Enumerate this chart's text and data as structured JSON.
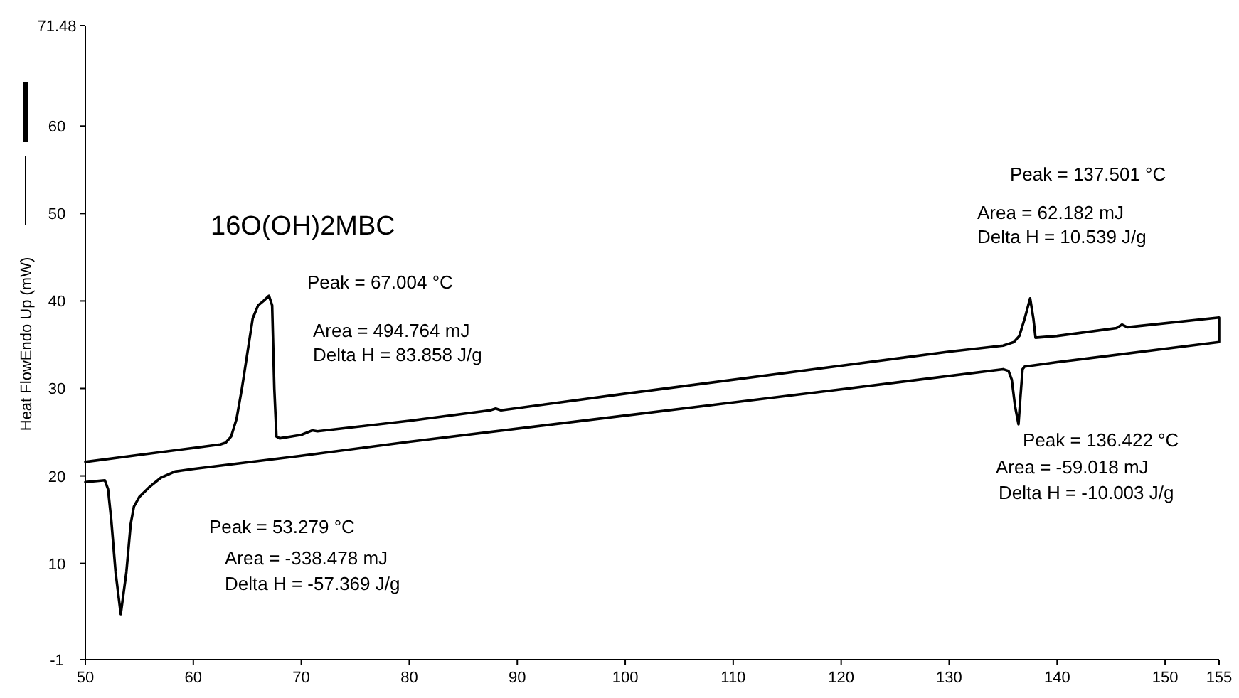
{
  "chart_data": {
    "type": "line",
    "title": "16O(OH)2MBC",
    "ylabel": "Heat FlowEndo Up (mW)",
    "xlim": [
      50,
      155
    ],
    "xticks": [
      50,
      60,
      70,
      80,
      90,
      100,
      110,
      120,
      130,
      140,
      150,
      155
    ],
    "ylim": [
      -1,
      71.48
    ],
    "yticks": [
      -1,
      10,
      20,
      30,
      40,
      50,
      60,
      71.48
    ],
    "grid": false,
    "marker": "none",
    "line_style": "solid",
    "series": [
      {
        "color": "#000000",
        "x": [
          50,
          55,
          60,
          62.5,
          63,
          63.5,
          64,
          64.5,
          65,
          65.5,
          66,
          66.5,
          67.004,
          67.3,
          67.5,
          67.7,
          68,
          69,
          70,
          71,
          71.5,
          80,
          87.5,
          88,
          88.5,
          100,
          120,
          130,
          135,
          136,
          136.5,
          137,
          137.501,
          137.8,
          138,
          140,
          145.5,
          146,
          146.5,
          155,
          155,
          140,
          137,
          136.8,
          136.6,
          136.422,
          136.1,
          135.8,
          135.5,
          135,
          120,
          100,
          80,
          70,
          60,
          58.3,
          57,
          56,
          55,
          54.5,
          54.2,
          53.8,
          53.279,
          52.8,
          52.4,
          52.1,
          51.8,
          50
        ],
        "values": [
          21.6,
          22.4,
          23.2,
          23.6,
          23.8,
          24.5,
          26.5,
          30,
          34,
          38,
          39.5,
          40,
          40.6,
          39.5,
          30,
          24.5,
          24.3,
          24.5,
          24.7,
          25.2,
          25.1,
          26.3,
          27.5,
          27.7,
          27.5,
          29.4,
          32.6,
          34.2,
          34.9,
          35.3,
          36,
          38,
          40.3,
          38,
          35.8,
          36,
          36.9,
          37.3,
          37,
          38.1,
          35.3,
          33,
          32.5,
          32.2,
          29,
          25.9,
          28,
          31,
          32,
          32.2,
          29.9,
          26.9,
          23.9,
          22.3,
          20.8,
          20.5,
          19.8,
          18.8,
          17.6,
          16.5,
          14.5,
          9,
          4.2,
          9,
          15,
          18.5,
          19.5,
          19.3
        ]
      }
    ],
    "annotations": [
      "Peak = 67.004 °C",
      "Area = 494.764 mJ",
      "Delta H = 83.858 J/g",
      "Peak = 53.279 °C",
      "Area = -338.478 mJ",
      "Delta H = -57.369 J/g",
      "Peak = 137.501 °C",
      "Area = 62.182 mJ",
      "Delta H = 10.539 J/g",
      "Peak = 136.422 °C",
      "Area = -59.018 mJ",
      "Delta H = -10.003 J/g"
    ]
  }
}
